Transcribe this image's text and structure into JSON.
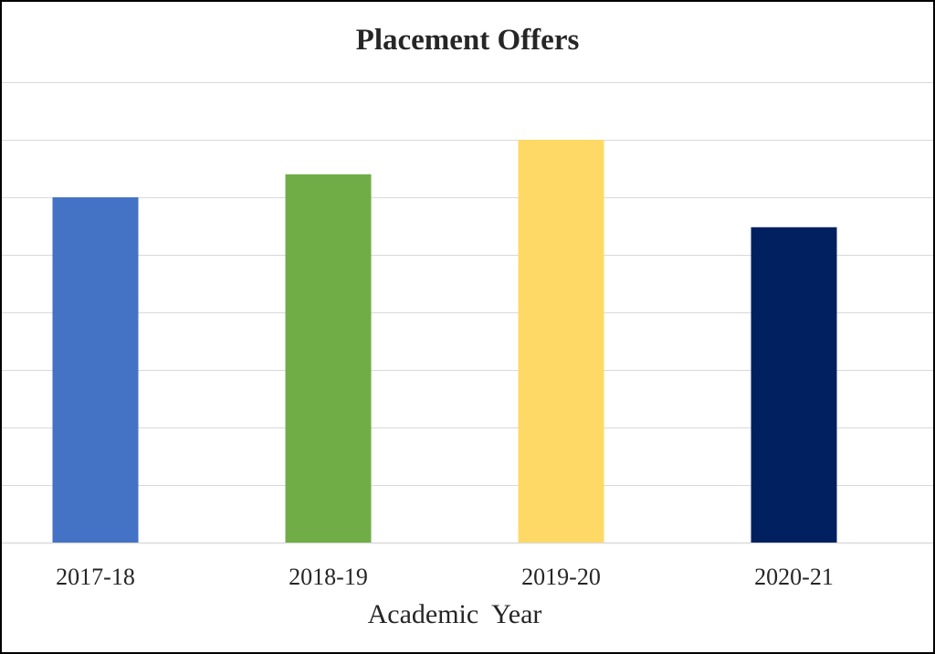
{
  "chart_data": {
    "type": "bar",
    "title": "Placement Offers",
    "xlabel": "Academic  Year",
    "ylabel": "",
    "categories": [
      "2017-18",
      "2018-19",
      "2019-20",
      "2020-21"
    ],
    "values": [
      300,
      320,
      350,
      274
    ],
    "ylim": [
      0,
      400
    ],
    "y_gridline_step": 50,
    "grid": true,
    "legend": "none",
    "y_tick_labels_visible": false,
    "bar_colors": [
      "#4472c4",
      "#70ad47",
      "#ffd966",
      "#002060"
    ]
  }
}
